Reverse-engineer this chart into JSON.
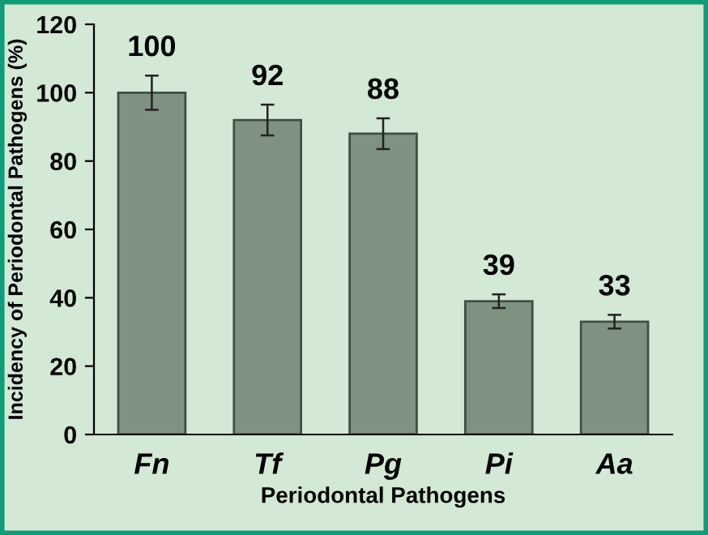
{
  "chart_data": {
    "type": "bar",
    "xlabel": "Periodontal Pathogens",
    "ylabel": "Incidency of Periodontal Pathogens (%)",
    "categories": [
      "Fn",
      "Tf",
      "Pg",
      "Pi",
      "Aa"
    ],
    "values": [
      100,
      92,
      88,
      39,
      33
    ],
    "errors": [
      5,
      4.5,
      4.5,
      2,
      2
    ],
    "color": "#7f9282",
    "ylim": [
      0,
      120
    ],
    "yticks": [
      0,
      20,
      40,
      60,
      80,
      100,
      120
    ],
    "grid": false,
    "data_labels": true
  }
}
